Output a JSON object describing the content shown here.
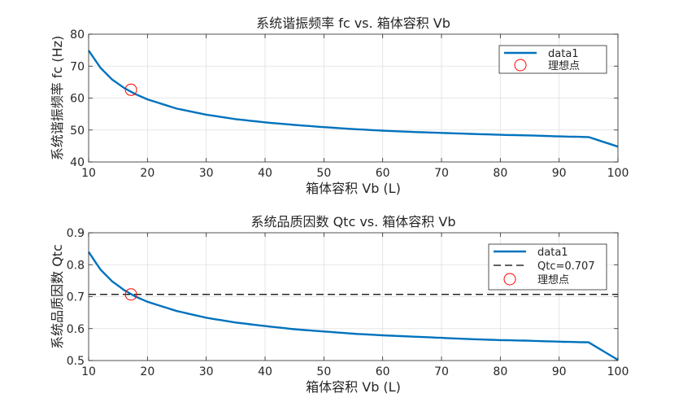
{
  "chart_data": [
    {
      "type": "line",
      "title": "系统谐振频率 fc vs. 箱体容积 Vb",
      "xlabel": "箱体容积 Vb (L)",
      "ylabel": "系统谐振频率 fc (Hz)",
      "xlim": [
        10,
        100
      ],
      "ylim": [
        40,
        80
      ],
      "xticks": [
        10,
        20,
        30,
        40,
        50,
        60,
        70,
        80,
        90,
        100
      ],
      "yticks": [
        40,
        50,
        60,
        70,
        80
      ],
      "grid": true,
      "legend": "top-right",
      "series": [
        {
          "name": "data1",
          "color": "#0072BD",
          "x": [
            10,
            12,
            14,
            16,
            18,
            20,
            25,
            30,
            35,
            40,
            45,
            50,
            55,
            60,
            65,
            70,
            75,
            80,
            85,
            90,
            95,
            100
          ],
          "y": [
            74.9,
            69.5,
            65.8,
            63.2,
            61.2,
            59.6,
            56.7,
            54.8,
            53.4,
            52.4,
            51.6,
            50.9,
            50.3,
            49.8,
            49.4,
            49.1,
            48.8,
            48.5,
            48.3,
            48.0,
            47.8,
            44.8
          ]
        }
      ],
      "markers": [
        {
          "name": "理想点",
          "x": 17.2,
          "y": 62.6,
          "color": "#FF0000"
        }
      ]
    },
    {
      "type": "line",
      "title": "系统品质因数 Qtc vs. 箱体容积 Vb",
      "xlabel": "箱体容积 Vb (L)",
      "ylabel": "系统品质因数 Qtc",
      "xlim": [
        10,
        100
      ],
      "ylim": [
        0.5,
        0.9
      ],
      "xticks": [
        10,
        20,
        30,
        40,
        50,
        60,
        70,
        80,
        90,
        100
      ],
      "yticks": [
        0.5,
        0.6,
        0.7,
        0.8,
        0.9
      ],
      "grid": true,
      "legend": "top-right",
      "series": [
        {
          "name": "data1",
          "color": "#0072BD",
          "x": [
            10,
            12,
            14,
            16,
            18,
            20,
            25,
            30,
            35,
            40,
            45,
            50,
            55,
            60,
            65,
            70,
            75,
            80,
            85,
            90,
            95,
            100
          ],
          "y": [
            0.84,
            0.785,
            0.748,
            0.721,
            0.7,
            0.684,
            0.655,
            0.634,
            0.619,
            0.608,
            0.598,
            0.591,
            0.584,
            0.579,
            0.575,
            0.571,
            0.567,
            0.564,
            0.562,
            0.559,
            0.557,
            0.502
          ]
        }
      ],
      "hline": {
        "name": "Qtc=0.707",
        "y": 0.707,
        "color": "#000000"
      },
      "markers": [
        {
          "name": "理想点",
          "x": 17.2,
          "y": 0.707,
          "color": "#FF0000"
        }
      ]
    }
  ]
}
